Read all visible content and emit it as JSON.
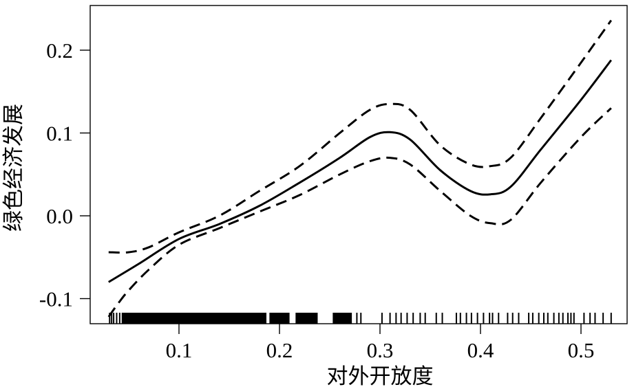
{
  "chart_data": {
    "type": "line",
    "xlabel": "对外开放度",
    "ylabel": "绿色经济发展",
    "xlim": [
      0.03,
      0.53
    ],
    "ylim": [
      -0.13,
      0.25
    ],
    "xticks": [
      0.1,
      0.2,
      0.3,
      0.4,
      0.5
    ],
    "xtick_labels": [
      "0.1",
      "0.2",
      "0.3",
      "0.4",
      "0.5"
    ],
    "yticks": [
      -0.1,
      0.0,
      0.1,
      0.2
    ],
    "ytick_labels": [
      "-0.1",
      "0.0",
      "0.1",
      "0.2"
    ],
    "grid": false,
    "legend": "none",
    "series": [
      {
        "role": "estimate",
        "style": "solid",
        "x": [
          0.03,
          0.06,
          0.1,
          0.14,
          0.18,
          0.22,
          0.26,
          0.29,
          0.31,
          0.33,
          0.36,
          0.39,
          0.41,
          0.43,
          0.46,
          0.5,
          0.53
        ],
        "y": [
          -0.08,
          -0.058,
          -0.028,
          -0.01,
          0.012,
          0.04,
          0.07,
          0.095,
          0.101,
          0.092,
          0.055,
          0.03,
          0.026,
          0.035,
          0.08,
          0.14,
          0.188
        ]
      },
      {
        "role": "upper",
        "style": "dashed",
        "x": [
          0.03,
          0.05,
          0.07,
          0.1,
          0.14,
          0.18,
          0.22,
          0.26,
          0.29,
          0.31,
          0.33,
          0.36,
          0.39,
          0.41,
          0.43,
          0.46,
          0.5,
          0.53
        ],
        "y": [
          -0.044,
          -0.044,
          -0.038,
          -0.02,
          0.0,
          0.03,
          0.06,
          0.1,
          0.128,
          0.135,
          0.128,
          0.085,
          0.062,
          0.06,
          0.07,
          0.118,
          0.185,
          0.236
        ]
      },
      {
        "role": "lower",
        "style": "dashed",
        "x": [
          0.03,
          0.04,
          0.05,
          0.07,
          0.1,
          0.14,
          0.18,
          0.22,
          0.26,
          0.29,
          0.31,
          0.33,
          0.36,
          0.39,
          0.41,
          0.43,
          0.46,
          0.5,
          0.53
        ],
        "y": [
          -0.122,
          -0.105,
          -0.09,
          -0.065,
          -0.035,
          -0.015,
          0.005,
          0.025,
          0.05,
          0.066,
          0.07,
          0.062,
          0.03,
          0.0,
          -0.009,
          -0.005,
          0.04,
          0.095,
          0.13
        ]
      }
    ],
    "rug": {
      "dense_ranges": [
        [
          0.043,
          0.187
        ],
        [
          0.19,
          0.21
        ],
        [
          0.216,
          0.238
        ],
        [
          0.253,
          0.272
        ]
      ],
      "ticks": [
        0.031,
        0.033,
        0.035,
        0.038,
        0.041,
        0.277,
        0.281,
        0.302,
        0.31,
        0.316,
        0.321,
        0.327,
        0.333,
        0.34,
        0.345,
        0.356,
        0.362,
        0.376,
        0.38,
        0.386,
        0.391,
        0.397,
        0.403,
        0.409,
        0.412,
        0.418,
        0.427,
        0.432,
        0.438,
        0.448,
        0.452,
        0.458,
        0.463,
        0.467,
        0.473,
        0.478,
        0.482,
        0.487,
        0.49,
        0.493,
        0.503,
        0.509,
        0.514,
        0.522,
        0.53
      ]
    }
  }
}
